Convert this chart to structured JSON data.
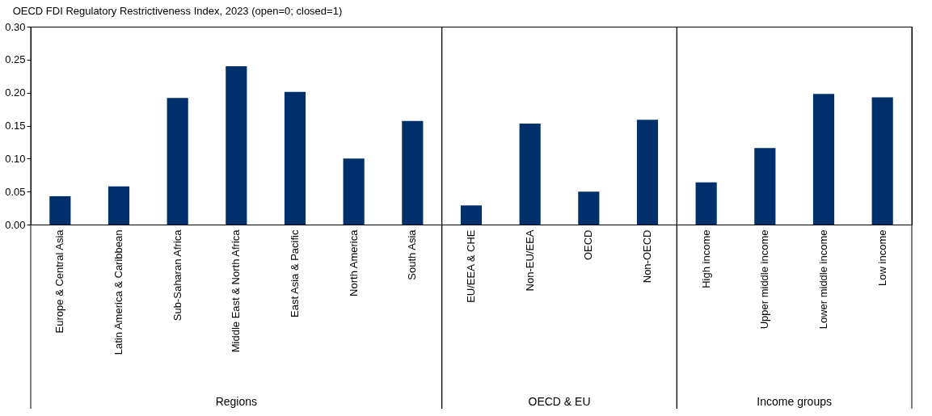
{
  "chart_data": {
    "type": "bar",
    "title": "OECD FDI Regulatory Restrictiveness Index, 2023 (open=0; closed=1)",
    "categories": [
      "Europe & Central Asia",
      "Latin America & Caribbean",
      "Sub-Saharan Africa",
      "Middle East & North Africa",
      "East Asia & Pacific",
      "North America",
      "South Asia",
      "EU/EEA & CHE",
      "Non-EU/EEA",
      "OECD",
      "Non-OECD",
      "High income",
      "Upper middle income",
      "Lower middle income",
      "Low income"
    ],
    "values": [
      0.043,
      0.058,
      0.192,
      0.24,
      0.201,
      0.1,
      0.157,
      0.029,
      0.153,
      0.05,
      0.159,
      0.064,
      0.116,
      0.198,
      0.193
    ],
    "color": "#002f6c",
    "ylim": [
      0,
      0.3
    ],
    "yticks": [
      {
        "value": 0,
        "label": "0.00"
      },
      {
        "value": 0.05,
        "label": "0.05"
      },
      {
        "value": 0.1,
        "label": "0.10"
      },
      {
        "value": 0.15,
        "label": "0.15"
      },
      {
        "value": 0.2,
        "label": "0.20"
      },
      {
        "value": 0.25,
        "label": "0.25"
      },
      {
        "value": 0.3,
        "label": "0.30"
      }
    ],
    "grid": false,
    "annotations": [
      "Regions",
      "OECD & EU",
      "Income groups"
    ]
  }
}
